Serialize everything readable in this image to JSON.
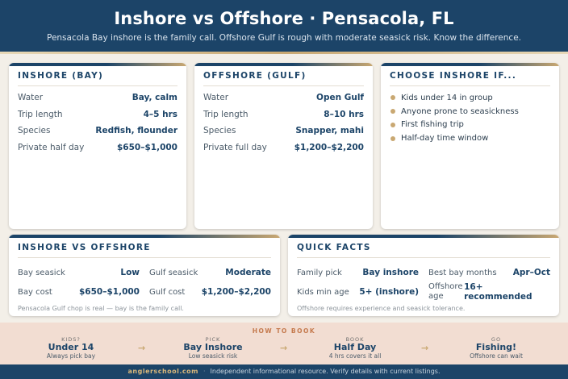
{
  "header": {
    "title": "Inshore vs Offshore · Pensacola, FL",
    "subtitle": "Pensacola Bay inshore is the family call. Offshore Gulf is rough with moderate seasick risk. Know the difference."
  },
  "inshore": {
    "title": "INSHORE (BAY)",
    "rows": [
      {
        "label": "Water",
        "value": "Bay, calm"
      },
      {
        "label": "Trip length",
        "value": "4–5 hrs"
      },
      {
        "label": "Species",
        "value": "Redfish, flounder"
      },
      {
        "label": "Private half day",
        "value": "$650–$1,000"
      }
    ]
  },
  "offshore": {
    "title": "OFFSHORE (GULF)",
    "rows": [
      {
        "label": "Water",
        "value": "Open Gulf"
      },
      {
        "label": "Trip length",
        "value": "8–10 hrs"
      },
      {
        "label": "Species",
        "value": "Snapper, mahi"
      },
      {
        "label": "Private full day",
        "value": "$1,200–$2,200"
      }
    ]
  },
  "choose": {
    "title": "CHOOSE INSHORE IF...",
    "items": [
      "Kids under 14 in group",
      "Anyone prone to seasickness",
      "First fishing trip",
      "Half-day time window"
    ]
  },
  "compare": {
    "title": "INSHORE VS OFFSHORE",
    "cells": [
      {
        "label": "Bay seasick",
        "value": "Low"
      },
      {
        "label": "Gulf seasick",
        "value": "Moderate"
      },
      {
        "label": "Bay cost",
        "value": "$650–$1,000"
      },
      {
        "label": "Gulf cost",
        "value": "$1,200–$2,200"
      }
    ],
    "note": "Pensacola Gulf chop is real — bay is the family call."
  },
  "facts": {
    "title": "QUICK FACTS",
    "cells": [
      {
        "label": "Family pick",
        "value": "Bay inshore"
      },
      {
        "label": "Best bay months",
        "value": "Apr–Oct"
      },
      {
        "label": "Kids min age",
        "value": "5+ (inshore)"
      },
      {
        "label": "Offshore age",
        "value": "16+ recommended"
      }
    ],
    "note": "Offshore requires experience and seasick tolerance."
  },
  "howto": {
    "title": "HOW TO BOOK",
    "steps": [
      {
        "label": "KIDS?",
        "value": "Under 14",
        "sub": "Always pick bay"
      },
      {
        "label": "PICK",
        "value": "Bay Inshore",
        "sub": "Low seasick risk"
      },
      {
        "label": "BOOK",
        "value": "Half Day",
        "sub": "4 hrs covers it all"
      },
      {
        "label": "GO",
        "value": "Fishing!",
        "sub": "Offshore can wait"
      }
    ],
    "arrow": "→"
  },
  "footer": {
    "site": "anglerschool.com",
    "separator": "·",
    "text": "Independent informational resource. Verify details with current listings."
  },
  "colors": {
    "navy": "#1c4468",
    "gold": "#c9a872",
    "cream": "#f3efe8",
    "peach": "#f2ddd2"
  }
}
